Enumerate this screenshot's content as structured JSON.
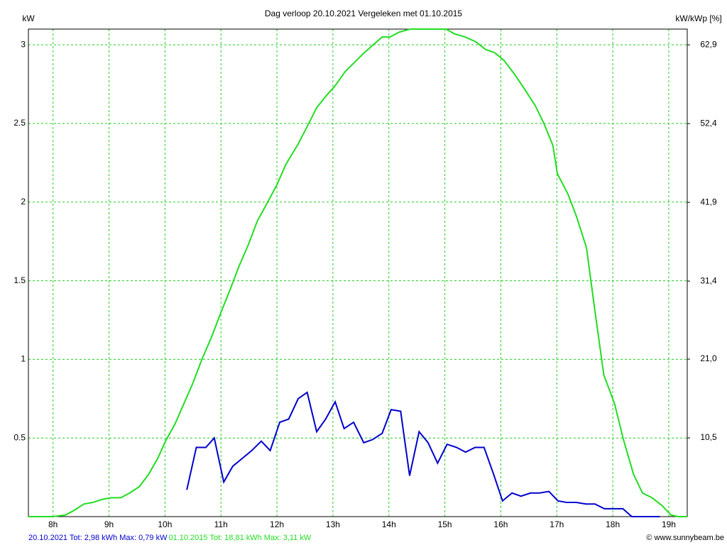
{
  "chart_data": {
    "type": "line",
    "title": "Dag  verloop 20.10.2021   Vergeleken met 01.10.2015",
    "y_label": "kW",
    "y2_label": "kW/kWp [%]",
    "credit": "© www.sunnybeam.be",
    "xlim": [
      7.56,
      19.33
    ],
    "xticks": [
      {
        "value": 8,
        "label": "8h"
      },
      {
        "value": 9,
        "label": "9h"
      },
      {
        "value": 10,
        "label": "10h"
      },
      {
        "value": 11,
        "label": "11h"
      },
      {
        "value": 12,
        "label": "12h"
      },
      {
        "value": 13,
        "label": "13h"
      },
      {
        "value": 14,
        "label": "14h"
      },
      {
        "value": 15,
        "label": "15h"
      },
      {
        "value": 16,
        "label": "16h"
      },
      {
        "value": 17,
        "label": "17h"
      },
      {
        "value": 18,
        "label": "18h"
      },
      {
        "value": 19,
        "label": "19h"
      }
    ],
    "ylim": [
      0,
      3.1
    ],
    "yticks": [
      0.5,
      1,
      1.5,
      2,
      2.5,
      3
    ],
    "y2lim": [
      0,
      65.0
    ],
    "y2ticks": [
      {
        "value": 10.5,
        "label": "10,5"
      },
      {
        "value": 21.0,
        "label": "21,0"
      },
      {
        "value": 31.4,
        "label": "31,4"
      },
      {
        "value": 41.9,
        "label": "41,9"
      },
      {
        "value": 52.4,
        "label": "52,4"
      },
      {
        "value": 62.9,
        "label": "62,9"
      }
    ],
    "grid": true,
    "series": [
      {
        "name": "20.10.2021 Tot: 2,98 kWh Max: 0,79 kW",
        "color": "#0000cc",
        "x": [
          10.39,
          10.56,
          10.73,
          10.88,
          11.05,
          11.21,
          11.38,
          11.55,
          11.72,
          11.88,
          12.05,
          12.21,
          12.38,
          12.54,
          12.71,
          12.87,
          13.04,
          13.2,
          13.37,
          13.55,
          13.71,
          13.88,
          14.04,
          14.21,
          14.37,
          14.54,
          14.7,
          14.87,
          15.04,
          15.21,
          15.37,
          15.54,
          15.7,
          15.87,
          16.03,
          16.2,
          16.36,
          16.53,
          16.69,
          16.86,
          17.02,
          17.18,
          17.35,
          17.52,
          17.68,
          17.85,
          18.01,
          18.18,
          18.34,
          18.51,
          18.67,
          18.84
        ],
        "values": [
          0.17,
          0.44,
          0.44,
          0.5,
          0.22,
          0.32,
          0.37,
          0.42,
          0.48,
          0.42,
          0.6,
          0.62,
          0.75,
          0.79,
          0.54,
          0.62,
          0.73,
          0.56,
          0.6,
          0.47,
          0.49,
          0.53,
          0.68,
          0.67,
          0.26,
          0.54,
          0.47,
          0.34,
          0.46,
          0.44,
          0.41,
          0.44,
          0.44,
          0.27,
          0.1,
          0.15,
          0.13,
          0.15,
          0.15,
          0.16,
          0.1,
          0.09,
          0.09,
          0.08,
          0.08,
          0.05,
          0.05,
          0.05,
          0,
          0,
          0,
          0
        ]
      },
      {
        "name": "01.10.2015 Tot: 18,81 kWh Max: 3,11 kW",
        "color": "#22dd22",
        "x": [
          7.56,
          8.0,
          8.22,
          8.38,
          8.55,
          8.71,
          8.88,
          9.04,
          9.21,
          9.37,
          9.54,
          9.71,
          9.87,
          10.01,
          10.18,
          10.34,
          10.5,
          10.66,
          10.83,
          10.99,
          11.16,
          11.32,
          11.49,
          11.65,
          11.82,
          12.0,
          12.16,
          12.38,
          12.54,
          12.71,
          12.89,
          13.04,
          13.22,
          13.39,
          13.56,
          13.72,
          13.88,
          14.02,
          14.18,
          14.38,
          14.56,
          14.73,
          15.02,
          15.17,
          15.36,
          15.55,
          15.73,
          15.89,
          16.06,
          16.25,
          16.44,
          16.62,
          16.77,
          16.93,
          17.01,
          17.2,
          17.35,
          17.53,
          17.68,
          17.84,
          18.03,
          18.19,
          18.37,
          18.53,
          18.7,
          18.88,
          19.04,
          19.17,
          19.33
        ],
        "values": [
          0,
          0,
          0.01,
          0.04,
          0.08,
          0.09,
          0.11,
          0.12,
          0.12,
          0.15,
          0.19,
          0.27,
          0.37,
          0.48,
          0.59,
          0.72,
          0.85,
          1.0,
          1.14,
          1.29,
          1.44,
          1.59,
          1.73,
          1.88,
          1.99,
          2.11,
          2.24,
          2.37,
          2.48,
          2.6,
          2.68,
          2.74,
          2.83,
          2.89,
          2.95,
          3.0,
          3.05,
          3.05,
          3.08,
          3.1,
          3.1,
          3.1,
          3.1,
          3.07,
          3.05,
          3.02,
          2.97,
          2.95,
          2.9,
          2.81,
          2.71,
          2.61,
          2.5,
          2.36,
          2.18,
          2.05,
          1.91,
          1.71,
          1.31,
          0.9,
          0.72,
          0.49,
          0.27,
          0.15,
          0.12,
          0.07,
          0.01,
          0,
          0
        ]
      }
    ]
  }
}
